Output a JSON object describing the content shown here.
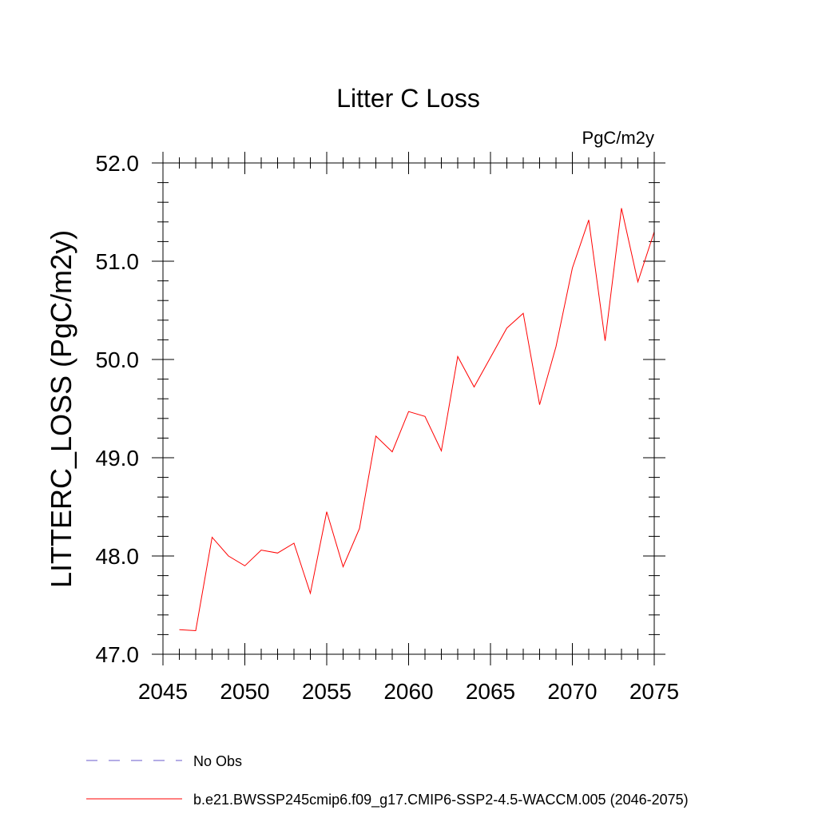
{
  "chart_data": {
    "type": "line",
    "title": "Litter C Loss",
    "units_label": "PgC/m2y",
    "ylabel": "LITTERC_LOSS  (PgC/m2y)",
    "xlabel": "",
    "xlim": [
      2045,
      2075
    ],
    "ylim": [
      47.0,
      52.0
    ],
    "xticks": [
      2045,
      2050,
      2055,
      2060,
      2065,
      2070,
      2075
    ],
    "xtick_labels": [
      "2045",
      "2050",
      "2055",
      "2060",
      "2065",
      "2070",
      "2075"
    ],
    "yticks": [
      47.0,
      48.0,
      49.0,
      50.0,
      51.0,
      52.0
    ],
    "ytick_labels": [
      "47.0",
      "48.0",
      "49.0",
      "50.0",
      "51.0",
      "52.0"
    ],
    "grid": false,
    "legend_position": "bottom",
    "series": [
      {
        "name": "b.e21.BWSSP245cmip6.f09_g17.CMIP6-SSP2-4.5-WACCM.005 (2046-2075)",
        "color": "#ff0000",
        "dash": "solid",
        "x": [
          2046,
          2047,
          2048,
          2049,
          2050,
          2051,
          2052,
          2053,
          2054,
          2055,
          2056,
          2057,
          2058,
          2059,
          2060,
          2061,
          2062,
          2063,
          2064,
          2065,
          2066,
          2067,
          2068,
          2069,
          2070,
          2071,
          2072,
          2073,
          2074,
          2075
        ],
        "y": [
          47.25,
          47.24,
          48.19,
          48.0,
          47.9,
          48.06,
          48.03,
          48.13,
          47.62,
          48.45,
          47.89,
          48.28,
          49.22,
          49.06,
          49.47,
          49.42,
          49.07,
          50.03,
          49.72,
          50.02,
          50.32,
          50.47,
          49.54,
          50.13,
          50.93,
          51.42,
          50.19,
          51.54,
          50.79,
          51.3
        ]
      }
    ],
    "legend": [
      {
        "label": "No Obs",
        "color": "#6a5acd",
        "dash": "dashed"
      },
      {
        "label": "b.e21.BWSSP245cmip6.f09_g17.CMIP6-SSP2-4.5-WACCM.005 (2046-2075)",
        "color": "#ff0000",
        "dash": "solid"
      }
    ]
  }
}
